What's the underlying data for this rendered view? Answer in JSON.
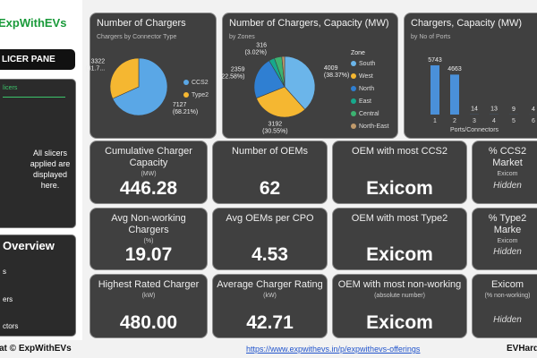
{
  "sidebar": {
    "brand": "ExpWithEVs",
    "slicer_pane": "LICER PANE",
    "slicers_title": "licers",
    "slicers_note": "All slicers applied are displayed here.",
    "overview_title": "Overview",
    "overview_items": [
      "s",
      "ers",
      "ctors"
    ]
  },
  "chart_data": [
    {
      "type": "pie",
      "title": "Number of Chargers",
      "subtitle": "Chargers by Connector Type",
      "categories": [
        "CCS2",
        "Type2"
      ],
      "values": [
        7127,
        3322
      ],
      "percent_labels": [
        "(68.21%)",
        "(31.7..."
      ],
      "colors": [
        "#5aa7e6",
        "#f5b731"
      ]
    },
    {
      "type": "pie",
      "title": "Number of Chargers, Capacity (MW)",
      "subtitle": "by Zones",
      "legend_title": "Zone",
      "categories": [
        "South",
        "West",
        "North",
        "East",
        "Central",
        "North-East"
      ],
      "values": [
        4009,
        3192,
        2359,
        316,
        420,
        153
      ],
      "percent_labels": [
        "(38.37%)",
        "(30.55%)",
        "(22.58%)",
        "(3.02%)",
        null,
        null
      ],
      "colors": [
        "#6bb5ea",
        "#f5b731",
        "#2f7fd2",
        "#17a88c",
        "#3cb371",
        "#c09a6b"
      ]
    },
    {
      "type": "bar",
      "title": "Chargers, Capacity (MW)",
      "subtitle": "by No of Ports",
      "categories": [
        "1",
        "2",
        "3",
        "4",
        "5",
        "6"
      ],
      "values": [
        5743,
        4663,
        14,
        13,
        9,
        4
      ],
      "xlabel": "Ports/Connectors",
      "color": "#4a90d9",
      "data_labels": true
    }
  ],
  "cards": [
    {
      "title": "Cumulative Charger Capacity",
      "unit": "(MW)",
      "value": "446.28"
    },
    {
      "title": "Number of OEMs",
      "value": "62"
    },
    {
      "title": "OEM with most CCS2",
      "value": "Exicom"
    },
    {
      "title": "% CCS2 Market",
      "unit": "Exicom",
      "value": "Hidden"
    },
    {
      "title": "Avg Non-working Chargers",
      "unit": "(%)",
      "value": "19.07"
    },
    {
      "title": "Avg OEMs per CPO",
      "value": "4.53"
    },
    {
      "title": "OEM with most Type2",
      "value": "Exicom"
    },
    {
      "title": "% Type2 Marke",
      "unit": "Exicom",
      "value": "Hidden"
    },
    {
      "title": "Highest Rated Charger",
      "unit": "(kW)",
      "value": "480.00"
    },
    {
      "title": "Average Charger Rating",
      "unit": "(kW)",
      "value": "42.71"
    },
    {
      "title": "OEM with most non-working",
      "unit": "(absolute number)",
      "value": "Exicom"
    },
    {
      "title": "Exicom",
      "unit": "(% non-working)",
      "value": "Hidden"
    }
  ],
  "footer": {
    "left": "at © ExpWithEVs",
    "link": "https://www.expwithevs.in/p/expwithevs-offerings",
    "right": "EVHard"
  }
}
